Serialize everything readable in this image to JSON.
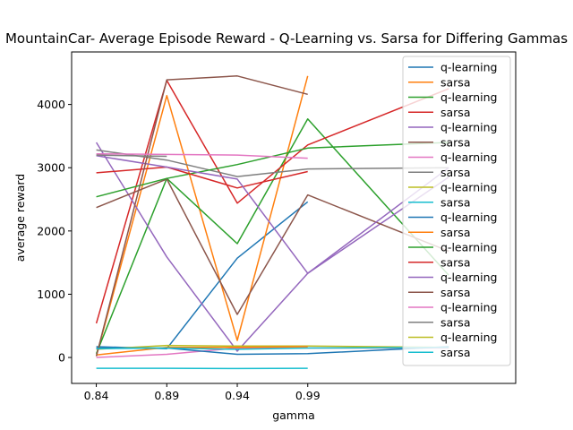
{
  "chart_data": {
    "type": "line",
    "title": "MountainCar- Average Episode Reward - Q-Learning vs. Sarsa for Differing Gammas",
    "xlabel": "gamma",
    "ylabel": "average reward",
    "xlim": [
      0.8225,
      1.1375
    ],
    "ylim": [
      -410,
      4830
    ],
    "x": [
      0.84,
      0.89,
      0.94,
      0.99,
      1.09
    ],
    "x_tick_labels": [
      "0.84",
      "0.89",
      "0.94",
      "0.99"
    ],
    "x_ticks": [
      0.84,
      0.89,
      0.94,
      0.99
    ],
    "y_ticks": [
      0,
      1000,
      2000,
      3000,
      4000
    ],
    "grid": false,
    "legend_position": "upper right",
    "series": [
      {
        "name": "q-learning",
        "color": "#1f77b4",
        "values": [
          170,
          140,
          1570,
          2460,
          null
        ]
      },
      {
        "name": "sarsa",
        "color": "#ff7f0e",
        "values": [
          20,
          4140,
          270,
          4450,
          null
        ]
      },
      {
        "name": "q-learning",
        "color": "#2ca02c",
        "values": [
          60,
          2830,
          1800,
          3770,
          1300
        ]
      },
      {
        "name": "sarsa",
        "color": "#d62728",
        "values": [
          540,
          4380,
          2440,
          3360,
          4250
        ]
      },
      {
        "name": "q-learning",
        "color": "#9467bd",
        "values": [
          3400,
          1590,
          100,
          1330,
          2850
        ]
      },
      {
        "name": "sarsa",
        "color": "#8c564b",
        "values": [
          2370,
          2820,
          680,
          2570,
          1680
        ]
      },
      {
        "name": "q-learning",
        "color": "#e377c2",
        "values": [
          0,
          50,
          150,
          150,
          150
        ]
      },
      {
        "name": "sarsa",
        "color": "#7f7f7f",
        "values": [
          3280,
          3120,
          2860,
          2980,
          3000
        ]
      },
      {
        "name": "q-learning",
        "color": "#bcbd22",
        "values": [
          130,
          190,
          180,
          180,
          160
        ]
      },
      {
        "name": "sarsa",
        "color": "#17becf",
        "values": [
          -170,
          -170,
          -175,
          -170,
          null
        ]
      },
      {
        "name": "q-learning",
        "color": "#1f77b4",
        "values": [
          150,
          150,
          50,
          60,
          170
        ]
      },
      {
        "name": "sarsa",
        "color": "#ff7f0e",
        "values": [
          40,
          160,
          160,
          170,
          null
        ]
      },
      {
        "name": "q-learning",
        "color": "#2ca02c",
        "values": [
          2540,
          2830,
          3050,
          3310,
          3400
        ]
      },
      {
        "name": "sarsa",
        "color": "#d62728",
        "values": [
          2920,
          3010,
          2680,
          2940,
          null
        ]
      },
      {
        "name": "q-learning",
        "color": "#9467bd",
        "values": [
          3190,
          3010,
          2820,
          1330,
          3000
        ]
      },
      {
        "name": "sarsa",
        "color": "#8c564b",
        "values": [
          20,
          4390,
          4450,
          4160,
          null
        ]
      },
      {
        "name": "q-learning",
        "color": "#e377c2",
        "values": [
          3220,
          3210,
          3200,
          3150,
          null
        ]
      },
      {
        "name": "sarsa",
        "color": "#7f7f7f",
        "values": [
          3200,
          3180,
          null,
          null,
          null
        ]
      },
      {
        "name": "q-learning",
        "color": "#bcbd22",
        "values": [
          null,
          null,
          null,
          null,
          null
        ]
      },
      {
        "name": "sarsa",
        "color": "#17becf",
        "values": [
          140,
          150,
          130,
          150,
          160
        ]
      }
    ]
  }
}
